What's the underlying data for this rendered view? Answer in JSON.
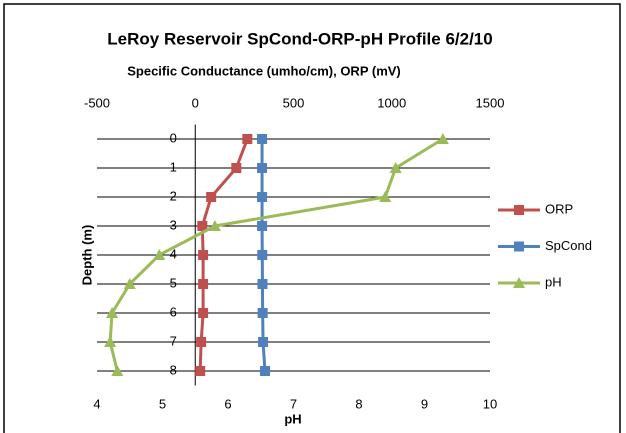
{
  "chart_data": {
    "type": "line",
    "title": "LeRoy Reservoir SpCond-ORP-pH Profile 6/2/10",
    "xlabel": "Specific Conductance  (umho/cm), ORP (mV)",
    "x2label": "pH",
    "ylabel": "Depth (m)",
    "y": [
      0,
      1,
      2,
      3,
      4,
      5,
      6,
      7,
      8
    ],
    "ylim": [
      -0.5,
      8.5
    ],
    "yticks": [
      0,
      1,
      2,
      3,
      4,
      5,
      6,
      7,
      8
    ],
    "y_reversed": true,
    "xlim": [
      -500,
      1500
    ],
    "xticks": [
      -500,
      0,
      500,
      1000,
      1500
    ],
    "x2lim": [
      4,
      10
    ],
    "x2ticks": [
      4,
      5,
      6,
      7,
      8,
      9,
      10
    ],
    "grid": true,
    "legend": "right",
    "series": [
      {
        "name": "ORP",
        "color": "#c0504d",
        "marker": "square",
        "values": [
          265,
          209,
          81,
          36,
          40,
          40,
          40,
          30,
          25
        ]
      },
      {
        "name": "SpCond",
        "color": "#4f81bd",
        "marker": "square",
        "values": [
          340,
          340,
          340,
          340,
          341,
          342,
          343,
          345,
          355
        ]
      },
      {
        "name": "pH",
        "color": "#9bbb59",
        "marker": "triangle",
        "axis": "x2",
        "values": [
          9.28,
          8.56,
          8.4,
          5.8,
          4.95,
          4.5,
          4.23,
          4.2,
          4.31
        ]
      }
    ]
  }
}
